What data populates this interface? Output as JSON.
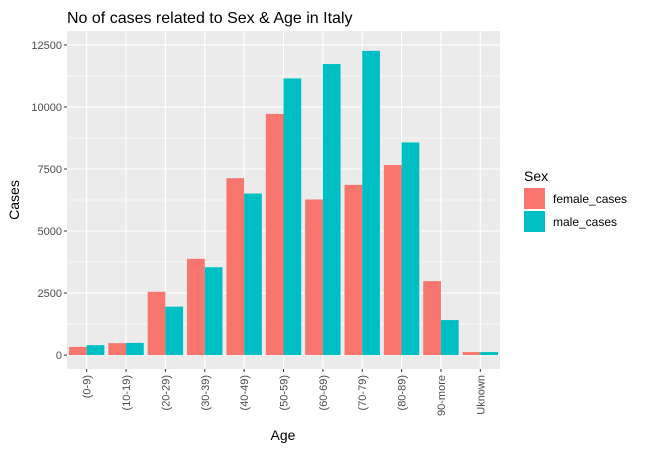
{
  "chart_data": {
    "type": "bar",
    "title": "No of cases related to Sex & Age in Italy",
    "xlabel": "Age",
    "ylabel": "Cases",
    "categories": [
      "(0-9)",
      "(10-19)",
      "(20-29)",
      "(30-39)",
      "(40-49)",
      "(50-59)",
      "(60-69)",
      "(70-79)",
      "(80-89)",
      "90-more",
      "Uknown"
    ],
    "series": [
      {
        "name": "female_cases",
        "color": "#F8766D",
        "values": [
          330,
          480,
          2550,
          3880,
          7130,
          9720,
          6270,
          6860,
          7660,
          2980,
          120
        ]
      },
      {
        "name": "male_cases",
        "color": "#00BFC4",
        "values": [
          400,
          490,
          1950,
          3540,
          6510,
          11150,
          11730,
          12260,
          8570,
          1410,
          120
        ]
      }
    ],
    "ylim": [
      -562,
      13062
    ],
    "yticks": [
      0,
      2500,
      5000,
      7500,
      10000,
      12500
    ],
    "grid": true,
    "legend": {
      "title": "Sex",
      "position": "right"
    }
  }
}
